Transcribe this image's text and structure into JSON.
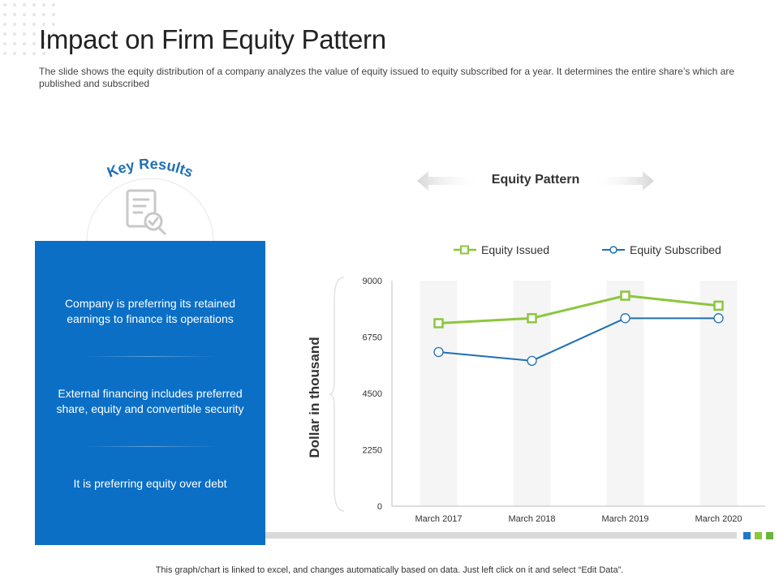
{
  "slide": {
    "title": "Impact on Firm Equity Pattern",
    "subtitle": "The slide shows the equity distribution of a company analyzes the value of equity issued to equity subscribed for a year. It determines the entire share’s which are published and subscribed",
    "key_results_label": "Key Results",
    "key_points": [
      "Company is preferring its retained earnings to finance its operations",
      "External financing includes preferred share, equity and convertible security",
      "It is preferring equity over debt"
    ],
    "footer_note": "This graph/chart is linked to excel, and changes automatically based on data. Just left click on it and select “Edit Data”."
  },
  "icons": {
    "key_results": "report-checkmark-icon",
    "chart_title_arrows": "double-arrow-icon"
  },
  "colors": {
    "accent_blue": "#0b6fc6",
    "series_issued": "#8cc63f",
    "series_subscribed": "#1f6fb5",
    "band_fill": "#f5f5f5",
    "square_blue": "#1f78c8",
    "square_green_1": "#8cc63f",
    "square_green_2": "#6cb33f"
  },
  "chart_data": {
    "type": "line",
    "title": "Equity Pattern",
    "ylabel": "Dollar in thousand",
    "xlabel": "",
    "categories": [
      "March 2017",
      "March 2018",
      "March 2019",
      "March 2020"
    ],
    "ylim": [
      0,
      9000
    ],
    "yticks": [
      0,
      2250,
      4500,
      6750,
      9000
    ],
    "ytick_labels": [
      "0",
      "2250",
      "4500",
      "6750",
      "9000"
    ],
    "legend_position": "top",
    "grid": false,
    "series": [
      {
        "name": "Equity Issued",
        "values": [
          7300,
          7500,
          8400,
          8000
        ],
        "marker": "square"
      },
      {
        "name": "Equity Subscribed",
        "values": [
          6150,
          5800,
          7500,
          7500
        ],
        "marker": "circle"
      }
    ]
  }
}
